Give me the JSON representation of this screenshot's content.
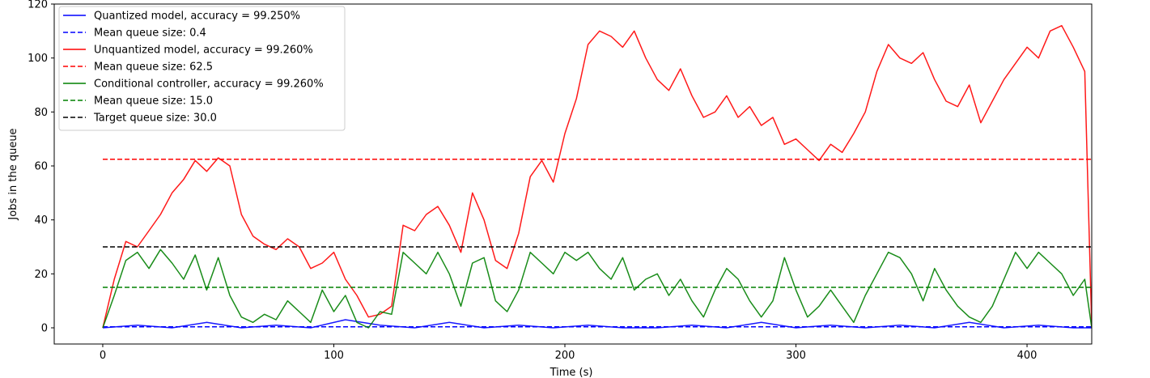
{
  "chart_data": {
    "type": "line",
    "title": "",
    "xlabel": "Time (s)",
    "ylabel": "Jobs in the queue",
    "xlim": [
      -21,
      428
    ],
    "ylim": [
      -6,
      120
    ],
    "xticks": [
      0,
      100,
      200,
      300,
      400
    ],
    "yticks": [
      0,
      20,
      40,
      60,
      80,
      100,
      120
    ],
    "grid": false,
    "legend_position": "top-left",
    "series": [
      {
        "name": "Quantized model, accuracy = 99.250%",
        "style": "solid",
        "color": "#0000ff",
        "x": [
          0,
          15,
          30,
          45,
          60,
          75,
          90,
          105,
          120,
          135,
          150,
          165,
          180,
          195,
          210,
          225,
          240,
          255,
          270,
          285,
          300,
          315,
          330,
          345,
          360,
          375,
          390,
          405,
          420,
          428
        ],
        "y": [
          0,
          1,
          0,
          2,
          0,
          1,
          0,
          3,
          1,
          0,
          2,
          0,
          1,
          0,
          1,
          0,
          0,
          1,
          0,
          2,
          0,
          1,
          0,
          1,
          0,
          2,
          0,
          1,
          0,
          0
        ]
      },
      {
        "name": "Mean queue size: 0.4",
        "style": "dashed",
        "color": "#0000ff",
        "x": [
          0,
          428
        ],
        "y": [
          0.4,
          0.4
        ]
      },
      {
        "name": "Unquantized model, accuracy = 99.260%",
        "style": "solid",
        "color": "#ff0000",
        "x": [
          0,
          5,
          10,
          15,
          20,
          25,
          30,
          35,
          40,
          45,
          50,
          55,
          60,
          65,
          70,
          75,
          80,
          85,
          90,
          95,
          100,
          105,
          110,
          115,
          120,
          125,
          130,
          135,
          140,
          145,
          150,
          155,
          160,
          165,
          170,
          175,
          180,
          185,
          190,
          195,
          200,
          205,
          210,
          215,
          220,
          225,
          230,
          235,
          240,
          245,
          250,
          255,
          260,
          265,
          270,
          275,
          280,
          285,
          290,
          295,
          300,
          305,
          310,
          315,
          320,
          325,
          330,
          335,
          340,
          345,
          350,
          355,
          360,
          365,
          370,
          375,
          380,
          385,
          390,
          395,
          400,
          405,
          410,
          415,
          420,
          425,
          428
        ],
        "y": [
          0,
          18,
          32,
          30,
          36,
          42,
          50,
          55,
          62,
          58,
          63,
          60,
          42,
          34,
          31,
          29,
          33,
          30,
          22,
          24,
          28,
          18,
          12,
          4,
          5,
          8,
          38,
          36,
          42,
          45,
          38,
          28,
          50,
          40,
          25,
          22,
          35,
          56,
          62,
          54,
          72,
          85,
          105,
          110,
          108,
          104,
          110,
          100,
          92,
          88,
          96,
          86,
          78,
          80,
          86,
          78,
          82,
          75,
          78,
          68,
          70,
          66,
          62,
          68,
          65,
          72,
          80,
          95,
          105,
          100,
          98,
          102,
          92,
          84,
          82,
          90,
          76,
          84,
          92,
          98,
          104,
          100,
          110,
          112,
          104,
          95,
          0
        ]
      },
      {
        "name": "Mean queue size: 62.5",
        "style": "dashed",
        "color": "#ff0000",
        "x": [
          0,
          428
        ],
        "y": [
          62.5,
          62.5
        ]
      },
      {
        "name": "Conditional controller, accuracy = 99.260%",
        "style": "solid",
        "color": "#008000",
        "x": [
          0,
          5,
          10,
          15,
          20,
          25,
          30,
          35,
          40,
          45,
          50,
          55,
          60,
          65,
          70,
          75,
          80,
          85,
          90,
          95,
          100,
          105,
          110,
          115,
          120,
          125,
          130,
          135,
          140,
          145,
          150,
          155,
          160,
          165,
          170,
          175,
          180,
          185,
          190,
          195,
          200,
          205,
          210,
          215,
          220,
          225,
          230,
          235,
          240,
          245,
          250,
          255,
          260,
          265,
          270,
          275,
          280,
          285,
          290,
          295,
          300,
          305,
          310,
          315,
          320,
          325,
          330,
          335,
          340,
          345,
          350,
          355,
          360,
          365,
          370,
          375,
          380,
          385,
          390,
          395,
          400,
          405,
          410,
          415,
          420,
          425,
          428
        ],
        "y": [
          0,
          12,
          25,
          28,
          22,
          29,
          24,
          18,
          27,
          14,
          26,
          12,
          4,
          2,
          5,
          3,
          10,
          6,
          2,
          14,
          6,
          12,
          2,
          0,
          6,
          5,
          28,
          24,
          20,
          28,
          20,
          8,
          24,
          26,
          10,
          6,
          14,
          28,
          24,
          20,
          28,
          25,
          28,
          22,
          18,
          26,
          14,
          18,
          20,
          12,
          18,
          10,
          4,
          14,
          22,
          18,
          10,
          4,
          10,
          26,
          14,
          4,
          8,
          14,
          8,
          2,
          12,
          20,
          28,
          26,
          20,
          10,
          22,
          14,
          8,
          4,
          2,
          8,
          18,
          28,
          22,
          28,
          24,
          20,
          12,
          18,
          0
        ]
      },
      {
        "name": "Mean queue size: 15.0",
        "style": "dashed",
        "color": "#008000",
        "x": [
          0,
          428
        ],
        "y": [
          15.0,
          15.0
        ]
      },
      {
        "name": "Target queue size: 30.0",
        "style": "dashed",
        "color": "#000000",
        "x": [
          0,
          428
        ],
        "y": [
          30.0,
          30.0
        ]
      }
    ]
  }
}
